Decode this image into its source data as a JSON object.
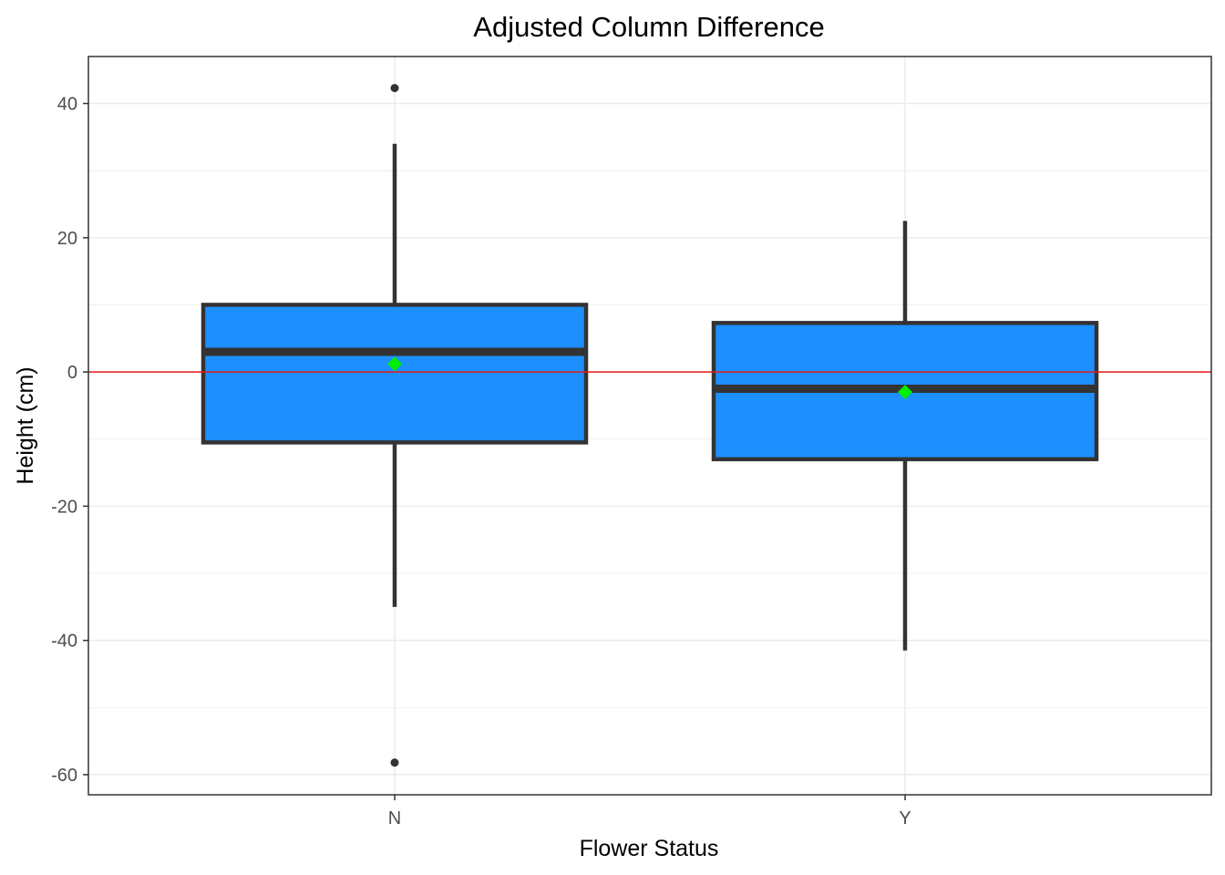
{
  "chart_data": {
    "type": "boxplot",
    "title": "Adjusted Column Difference",
    "xlabel": "Flower Status",
    "ylabel": "Height (cm)",
    "categories": [
      "N",
      "Y"
    ],
    "ylim": [
      -63,
      47
    ],
    "yticks": [
      -60,
      -40,
      -20,
      0,
      20,
      40
    ],
    "grid": true,
    "reference_line": {
      "y": 0,
      "color": "#e41a1c"
    },
    "box_fill": "#1e8fff",
    "mean_color": "#00ee00",
    "boxes": [
      {
        "category": "N",
        "whisker_low": -35,
        "q1": -10.5,
        "median": 3,
        "q3": 10,
        "whisker_high": 34,
        "mean": 1.2,
        "outliers": [
          42.3,
          -58.2
        ]
      },
      {
        "category": "Y",
        "whisker_low": -41.5,
        "q1": -13,
        "median": -2.5,
        "q3": 7.3,
        "whisker_high": 22.5,
        "mean": -3,
        "outliers": []
      }
    ]
  }
}
